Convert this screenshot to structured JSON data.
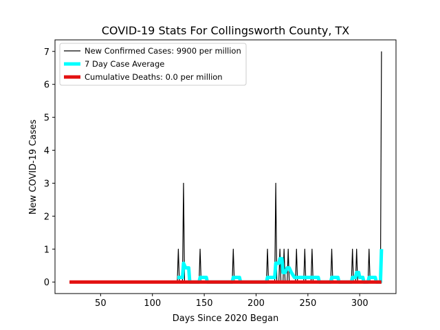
{
  "chart_data": {
    "type": "line",
    "title": "COVID-19 Stats For Collingsworth County, TX",
    "xlabel": "Days Since 2020 Began",
    "ylabel": "New COVID-19 Cases",
    "xlim": [
      6,
      335
    ],
    "ylim": [
      -0.35,
      7.35
    ],
    "xticks": [
      50,
      100,
      150,
      200,
      250,
      300
    ],
    "yticks": [
      0,
      1,
      2,
      3,
      4,
      5,
      6,
      7
    ],
    "grid": false,
    "legend_position": "top-left",
    "series": [
      {
        "name": "New Confirmed Cases: 9900 per million",
        "color": "#000000",
        "line_width": "thin",
        "points": [
          [
            20,
            0
          ],
          [
            124,
            0
          ],
          [
            125,
            1
          ],
          [
            126,
            0
          ],
          [
            129,
            0
          ],
          [
            130,
            3
          ],
          [
            131,
            0
          ],
          [
            145,
            0
          ],
          [
            146,
            1
          ],
          [
            147,
            0
          ],
          [
            177,
            0
          ],
          [
            178,
            1
          ],
          [
            179,
            0
          ],
          [
            210,
            0
          ],
          [
            211,
            1
          ],
          [
            212,
            0
          ],
          [
            218,
            0
          ],
          [
            219,
            3
          ],
          [
            220,
            0
          ],
          [
            222,
            0
          ],
          [
            223,
            1
          ],
          [
            224,
            0
          ],
          [
            226,
            0
          ],
          [
            227,
            1
          ],
          [
            228,
            0
          ],
          [
            230,
            0
          ],
          [
            231,
            1
          ],
          [
            232,
            0
          ],
          [
            238,
            0
          ],
          [
            239,
            1
          ],
          [
            240,
            0
          ],
          [
            246,
            0
          ],
          [
            247,
            1
          ],
          [
            248,
            0
          ],
          [
            253,
            0
          ],
          [
            254,
            1
          ],
          [
            255,
            0
          ],
          [
            272,
            0
          ],
          [
            273,
            1
          ],
          [
            274,
            0
          ],
          [
            292,
            0
          ],
          [
            293,
            1
          ],
          [
            294,
            0
          ],
          [
            296,
            0
          ],
          [
            297,
            1
          ],
          [
            298,
            0
          ],
          [
            308,
            0
          ],
          [
            309,
            1
          ],
          [
            310,
            0
          ],
          [
            320,
            0
          ],
          [
            321,
            7
          ]
        ]
      },
      {
        "name": "7 Day Case Average",
        "color": "#00ffff",
        "line_width": "thick",
        "points": [
          [
            124,
            0.14
          ],
          [
            129,
            0.14
          ],
          [
            130,
            0.57
          ],
          [
            132,
            0.43
          ],
          [
            135,
            0.43
          ],
          [
            136,
            0
          ],
          [
            145,
            0
          ],
          [
            146,
            0.14
          ],
          [
            152,
            0.14
          ],
          [
            153,
            0
          ],
          [
            177,
            0
          ],
          [
            178,
            0.14
          ],
          [
            184,
            0.14
          ],
          [
            185,
            0
          ],
          [
            210,
            0
          ],
          [
            211,
            0.14
          ],
          [
            218,
            0.14
          ],
          [
            219,
            0.57
          ],
          [
            222,
            0.57
          ],
          [
            223,
            0.71
          ],
          [
            225,
            0.71
          ],
          [
            226,
            0.29
          ],
          [
            228,
            0.29
          ],
          [
            230,
            0.43
          ],
          [
            232,
            0.43
          ],
          [
            234,
            0.29
          ],
          [
            237,
            0.14
          ],
          [
            238,
            0.14
          ],
          [
            239,
            0.14
          ],
          [
            246,
            0.14
          ],
          [
            247,
            0.14
          ],
          [
            253,
            0.14
          ],
          [
            254,
            0.14
          ],
          [
            260,
            0.14
          ],
          [
            261,
            0
          ],
          [
            272,
            0
          ],
          [
            273,
            0.14
          ],
          [
            279,
            0.14
          ],
          [
            280,
            0
          ],
          [
            292,
            0
          ],
          [
            293,
            0.14
          ],
          [
            296,
            0.14
          ],
          [
            297,
            0.29
          ],
          [
            299,
            0.29
          ],
          [
            300,
            0.14
          ],
          [
            303,
            0.14
          ],
          [
            304,
            0
          ],
          [
            308,
            0
          ],
          [
            309,
            0.14
          ],
          [
            315,
            0.14
          ],
          [
            316,
            0
          ],
          [
            320,
            0
          ],
          [
            321,
            1
          ]
        ]
      },
      {
        "name": "Cumulative Deaths: 0.0 per million",
        "color": "#e31010",
        "line_width": "thick",
        "points": [
          [
            20,
            0
          ],
          [
            321,
            0
          ]
        ]
      }
    ]
  }
}
